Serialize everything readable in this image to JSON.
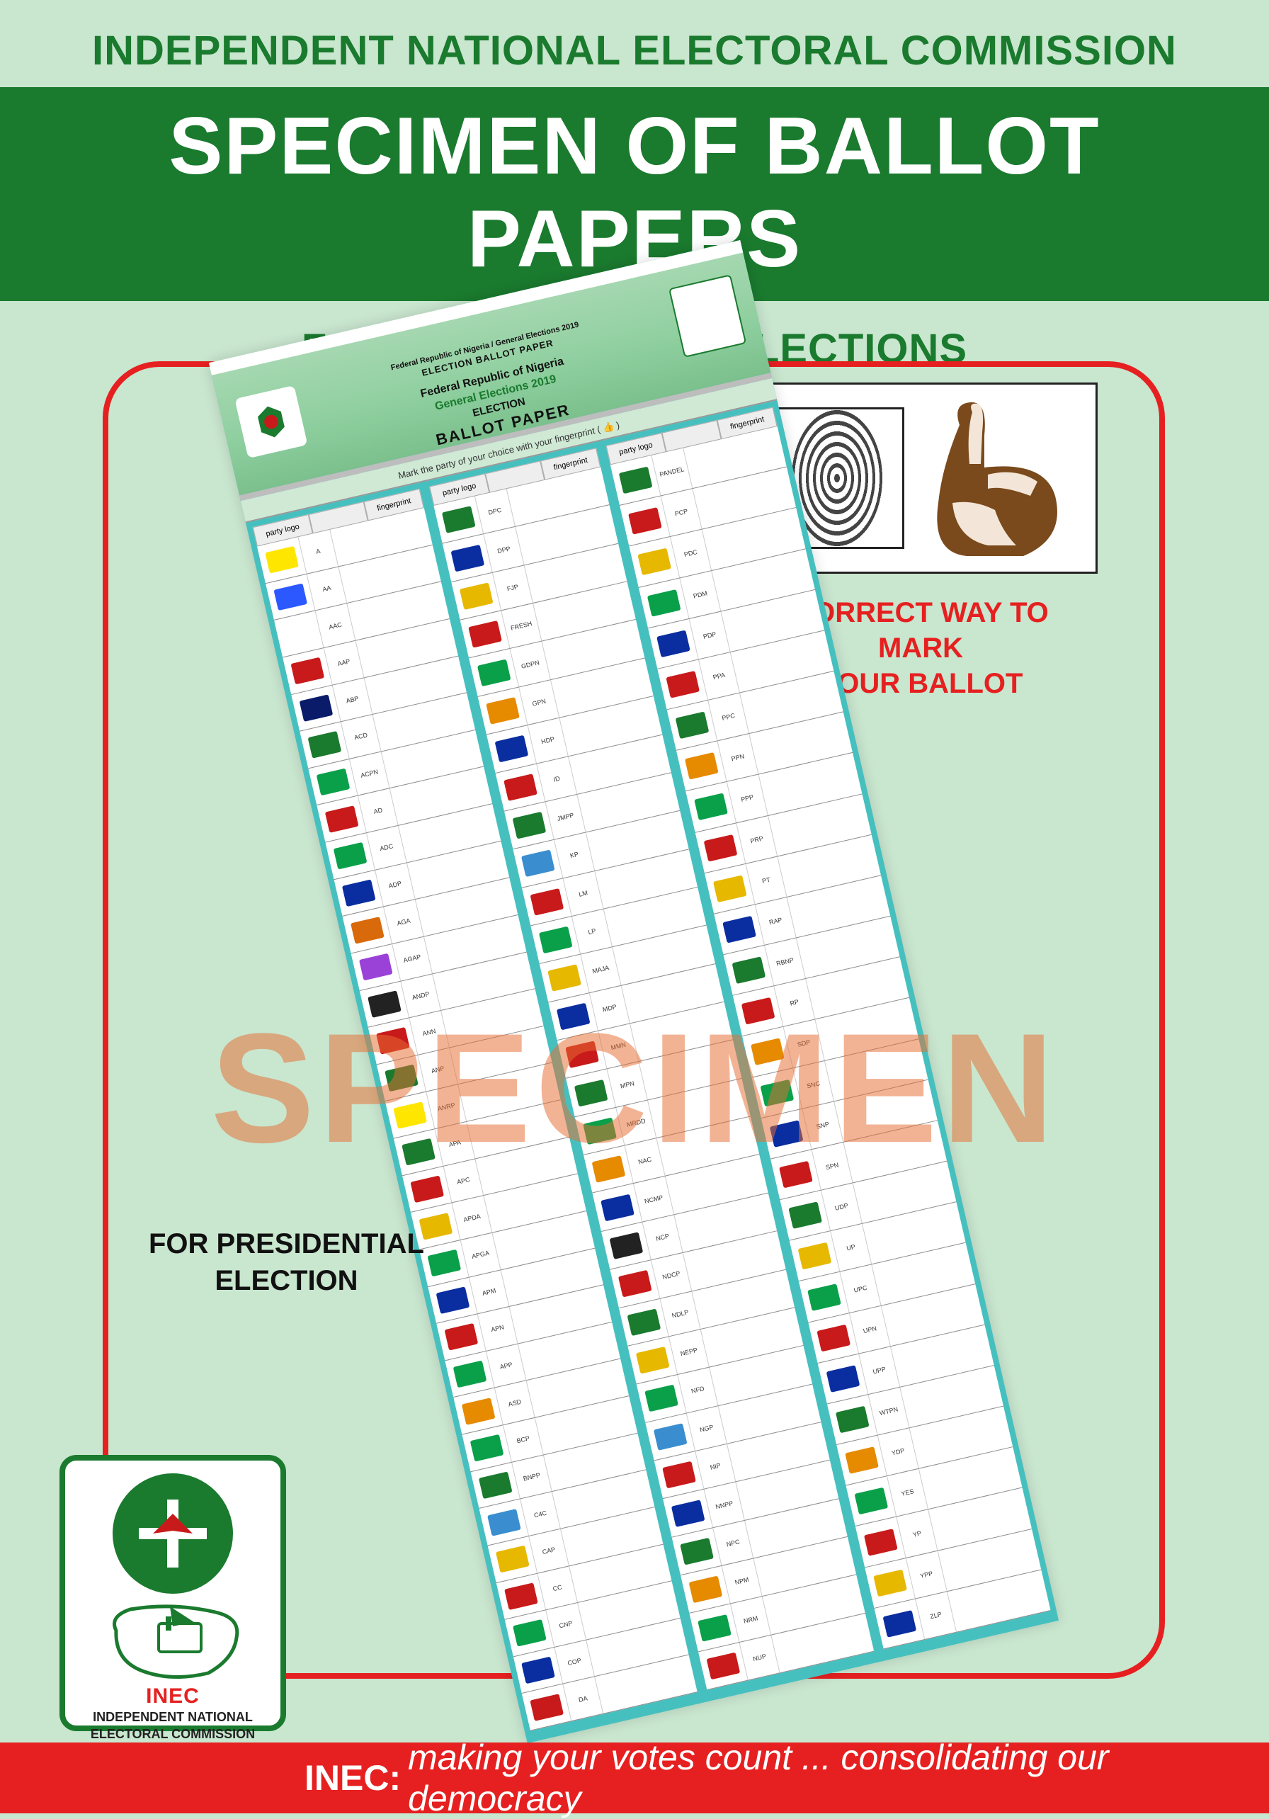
{
  "header": {
    "org": "INDEPENDENT NATIONAL ELECTORAL COMMISSION",
    "title": "SPECIMEN OF BALLOT PAPERS",
    "sub": "FOR 2019 GENERAL ELECTIONS"
  },
  "ballot": {
    "top_small": "Federal Republic of Nigeria / General Elections 2019",
    "top_caps": "ELECTION BALLOT PAPER",
    "line1": "Federal Republic of Nigeria",
    "line2": "General Elections 2019",
    "line3": "ELECTION",
    "line4": "BALLOT PAPER",
    "instruction": "Mark the party of your choice with your fingerprint ( 👍 )",
    "col_heads": [
      "party logo",
      "",
      "fingerprint"
    ],
    "columns": [
      [
        {
          "abbr": "A",
          "color": "#ffe600"
        },
        {
          "abbr": "AA",
          "color": "#2b59ff"
        },
        {
          "abbr": "AAC",
          "color": "#ffffff"
        },
        {
          "abbr": "AAP",
          "color": "#c81a1a"
        },
        {
          "abbr": "ABP",
          "color": "#0a1b6a"
        },
        {
          "abbr": "ACD",
          "color": "#1a7a2e"
        },
        {
          "abbr": "ACPN",
          "color": "#0aa04a"
        },
        {
          "abbr": "AD",
          "color": "#c81a1a"
        },
        {
          "abbr": "ADC",
          "color": "#0aa04a"
        },
        {
          "abbr": "ADP",
          "color": "#0a2ea0"
        },
        {
          "abbr": "AGA",
          "color": "#d86a0c"
        },
        {
          "abbr": "AGAP",
          "color": "#9a42d8"
        },
        {
          "abbr": "ANDP",
          "color": "#222222"
        },
        {
          "abbr": "ANN",
          "color": "#c81a1a"
        },
        {
          "abbr": "ANP",
          "color": "#1a7a2e"
        },
        {
          "abbr": "ANRP",
          "color": "#ffe600"
        },
        {
          "abbr": "APA",
          "color": "#1a7a2e"
        },
        {
          "abbr": "APC",
          "color": "#c81a1a"
        },
        {
          "abbr": "APDA",
          "color": "#e6b800"
        },
        {
          "abbr": "APGA",
          "color": "#0aa04a"
        },
        {
          "abbr": "APM",
          "color": "#0a2ea0"
        },
        {
          "abbr": "APN",
          "color": "#c81a1a"
        },
        {
          "abbr": "APP",
          "color": "#0aa04a"
        },
        {
          "abbr": "ASD",
          "color": "#e68a00"
        },
        {
          "abbr": "BCP",
          "color": "#0aa04a"
        },
        {
          "abbr": "BNPP",
          "color": "#1a7a2e"
        },
        {
          "abbr": "C4C",
          "color": "#3a8ecf"
        },
        {
          "abbr": "CAP",
          "color": "#e6b800"
        },
        {
          "abbr": "CC",
          "color": "#c81a1a"
        },
        {
          "abbr": "CNP",
          "color": "#0aa04a"
        },
        {
          "abbr": "COP",
          "color": "#0a2ea0"
        },
        {
          "abbr": "DA",
          "color": "#c81a1a"
        }
      ],
      [
        {
          "abbr": "DPC",
          "color": "#1a7a2e"
        },
        {
          "abbr": "DPP",
          "color": "#0a2ea0"
        },
        {
          "abbr": "FJP",
          "color": "#e6b800"
        },
        {
          "abbr": "FRESH",
          "color": "#c81a1a"
        },
        {
          "abbr": "GDPN",
          "color": "#0aa04a"
        },
        {
          "abbr": "GPN",
          "color": "#e68a00"
        },
        {
          "abbr": "HDP",
          "color": "#0a2ea0"
        },
        {
          "abbr": "ID",
          "color": "#c81a1a"
        },
        {
          "abbr": "JMPP",
          "color": "#1a7a2e"
        },
        {
          "abbr": "KP",
          "color": "#3a8ecf"
        },
        {
          "abbr": "LM",
          "color": "#c81a1a"
        },
        {
          "abbr": "LP",
          "color": "#0aa04a"
        },
        {
          "abbr": "MAJA",
          "color": "#e6b800"
        },
        {
          "abbr": "MDP",
          "color": "#0a2ea0"
        },
        {
          "abbr": "MMN",
          "color": "#c81a1a"
        },
        {
          "abbr": "MPN",
          "color": "#1a7a2e"
        },
        {
          "abbr": "MRDD",
          "color": "#0aa04a"
        },
        {
          "abbr": "NAC",
          "color": "#e68a00"
        },
        {
          "abbr": "NCMP",
          "color": "#0a2ea0"
        },
        {
          "abbr": "NCP",
          "color": "#222222"
        },
        {
          "abbr": "NDCP",
          "color": "#c81a1a"
        },
        {
          "abbr": "NDLP",
          "color": "#1a7a2e"
        },
        {
          "abbr": "NEPP",
          "color": "#e6b800"
        },
        {
          "abbr": "NFD",
          "color": "#0aa04a"
        },
        {
          "abbr": "NGP",
          "color": "#3a8ecf"
        },
        {
          "abbr": "NIP",
          "color": "#c81a1a"
        },
        {
          "abbr": "NNPP",
          "color": "#0a2ea0"
        },
        {
          "abbr": "NPC",
          "color": "#1a7a2e"
        },
        {
          "abbr": "NPM",
          "color": "#e68a00"
        },
        {
          "abbr": "NRM",
          "color": "#0aa04a"
        },
        {
          "abbr": "NUP",
          "color": "#c81a1a"
        }
      ],
      [
        {
          "abbr": "PANDEL",
          "color": "#1a7a2e"
        },
        {
          "abbr": "PCP",
          "color": "#c81a1a"
        },
        {
          "abbr": "PDC",
          "color": "#e6b800"
        },
        {
          "abbr": "PDM",
          "color": "#0aa04a"
        },
        {
          "abbr": "PDP",
          "color": "#0a2ea0"
        },
        {
          "abbr": "PPA",
          "color": "#c81a1a"
        },
        {
          "abbr": "PPC",
          "color": "#1a7a2e"
        },
        {
          "abbr": "PPN",
          "color": "#e68a00"
        },
        {
          "abbr": "PPP",
          "color": "#0aa04a"
        },
        {
          "abbr": "PRP",
          "color": "#c81a1a"
        },
        {
          "abbr": "PT",
          "color": "#e6b800"
        },
        {
          "abbr": "RAP",
          "color": "#0a2ea0"
        },
        {
          "abbr": "RBNP",
          "color": "#1a7a2e"
        },
        {
          "abbr": "RP",
          "color": "#c81a1a"
        },
        {
          "abbr": "SDP",
          "color": "#e68a00"
        },
        {
          "abbr": "SNC",
          "color": "#0aa04a"
        },
        {
          "abbr": "SNP",
          "color": "#0a2ea0"
        },
        {
          "abbr": "SPN",
          "color": "#c81a1a"
        },
        {
          "abbr": "UDP",
          "color": "#1a7a2e"
        },
        {
          "abbr": "UP",
          "color": "#e6b800"
        },
        {
          "abbr": "UPC",
          "color": "#0aa04a"
        },
        {
          "abbr": "UPN",
          "color": "#c81a1a"
        },
        {
          "abbr": "UPP",
          "color": "#0a2ea0"
        },
        {
          "abbr": "WTPN",
          "color": "#1a7a2e"
        },
        {
          "abbr": "YDP",
          "color": "#e68a00"
        },
        {
          "abbr": "YES",
          "color": "#0aa04a"
        },
        {
          "abbr": "YP",
          "color": "#c81a1a"
        },
        {
          "abbr": "YPP",
          "color": "#e6b800"
        },
        {
          "abbr": "ZLP",
          "color": "#0a2ea0"
        }
      ]
    ]
  },
  "callout": {
    "text1": "CORRECT WAY TO MARK",
    "text2": "YOUR BALLOT"
  },
  "watermark": "SPECIMEN",
  "for_pres": {
    "l1": "FOR PRESIDENTIAL",
    "l2": "ELECTION"
  },
  "inec_box": {
    "ribbon": "INEC",
    "sub1": "INDEPENDENT NATIONAL",
    "sub2": "ELECTORAL COMMISSION"
  },
  "footer": {
    "lead": "INEC:",
    "rest": " making your votes count ... consolidating our democracy"
  },
  "colors": {
    "bg": "#c9e6cf",
    "green": "#1a7a2e",
    "red": "#e62020",
    "teal": "#46c0bf"
  }
}
